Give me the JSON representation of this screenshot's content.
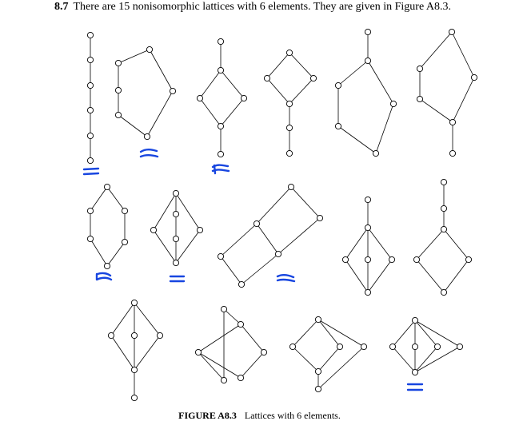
{
  "problem": {
    "number": "8.7",
    "text": "There are 15 nonisomorphic lattices with 6 elements. They are given in Figure A8.3."
  },
  "caption": {
    "label": "FIGURE A8.3",
    "text": "Lattices with 6 elements."
  },
  "colors": {
    "ink": "#000000",
    "annotation": "#1846e0"
  },
  "lattice_count": 15
}
